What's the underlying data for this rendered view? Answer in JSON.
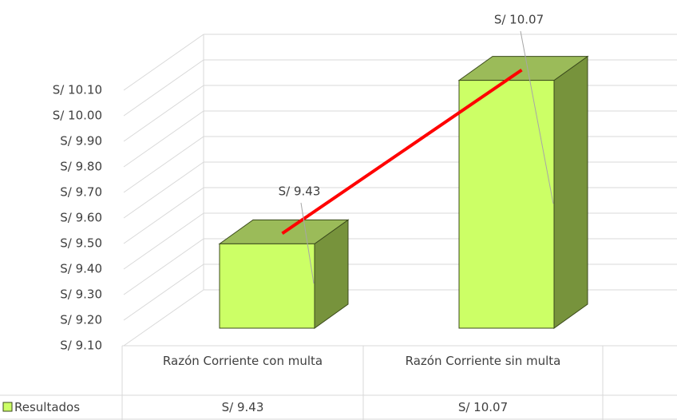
{
  "chart_data": {
    "type": "bar3d",
    "categories": [
      "Razón Corriente con multa",
      "Razón Corriente sin multa"
    ],
    "series": [
      {
        "name": "Resultados",
        "color": "#ccff66",
        "values": [
          9.43,
          10.07
        ],
        "value_labels": [
          "S/ 9.43",
          "S/ 10.07"
        ]
      }
    ],
    "ylim": [
      9.1,
      10.1
    ],
    "yticks": [
      {
        "value": 9.1,
        "label": "S/ 9.10"
      },
      {
        "value": 9.2,
        "label": "S/ 9.20"
      },
      {
        "value": 9.3,
        "label": "S/ 9.30"
      },
      {
        "value": 9.4,
        "label": "S/ 9.40"
      },
      {
        "value": 9.5,
        "label": "S/ 9.50"
      },
      {
        "value": 9.6,
        "label": "S/ 9.60"
      },
      {
        "value": 9.7,
        "label": "S/ 9.70"
      },
      {
        "value": 9.8,
        "label": "S/ 9.80"
      },
      {
        "value": 9.9,
        "label": "S/ 9.90"
      },
      {
        "value": 10.0,
        "label": "S/ 10.00"
      },
      {
        "value": 10.1,
        "label": "S/ 10.10"
      }
    ],
    "grid": true,
    "data_table": true
  }
}
